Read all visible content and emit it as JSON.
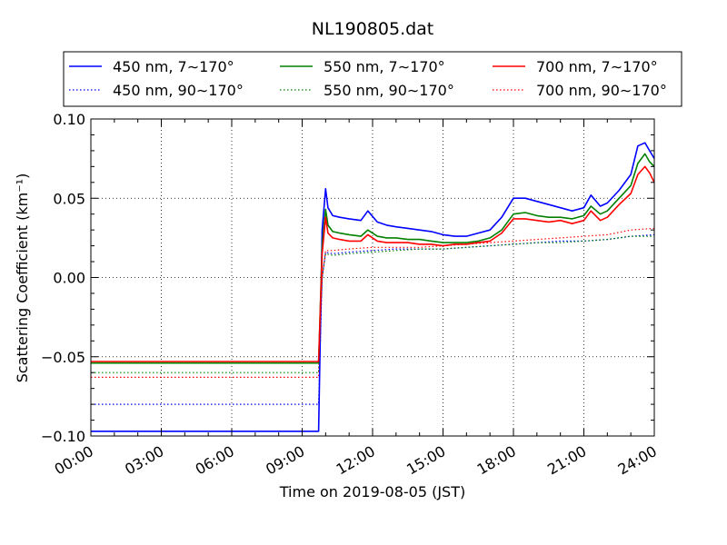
{
  "chart_data": {
    "type": "line",
    "title": "NL190805.dat",
    "xlabel": "Time on 2019-08-05 (JST)",
    "ylabel": "Scattering Coefficient (km⁻¹)",
    "x_unit": "hours",
    "xlim": [
      0,
      24
    ],
    "ylim": [
      -0.1,
      0.1
    ],
    "xticks": [
      0,
      3,
      6,
      9,
      12,
      15,
      18,
      21,
      24
    ],
    "xtick_labels": [
      "00:00",
      "03:00",
      "06:00",
      "09:00",
      "12:00",
      "15:00",
      "18:00",
      "21:00",
      "24:00"
    ],
    "yticks": [
      -0.1,
      -0.05,
      0.0,
      0.05,
      0.1
    ],
    "ytick_labels": [
      "−0.10",
      "−0.05",
      "0.00",
      "0.05",
      "0.10"
    ],
    "grid": true,
    "legend_position": "top, above plot, 3 columns",
    "series": [
      {
        "name": "450 nm, 7∼170°",
        "color": "#0000ff",
        "style": "solid",
        "x": [
          0,
          9.5,
          9.7,
          9.85,
          10.0,
          10.1,
          10.3,
          10.6,
          11.0,
          11.5,
          11.8,
          12.2,
          12.6,
          13.0,
          13.5,
          14.0,
          14.5,
          15.0,
          15.5,
          16.0,
          16.5,
          17.0,
          17.5,
          18.0,
          18.5,
          19.0,
          19.5,
          20.0,
          20.5,
          21.0,
          21.3,
          21.7,
          22.0,
          22.5,
          23.0,
          23.3,
          23.6,
          23.8,
          24.0
        ],
        "y": [
          -0.097,
          -0.097,
          -0.097,
          0.03,
          0.056,
          0.044,
          0.039,
          0.038,
          0.037,
          0.036,
          0.042,
          0.035,
          0.033,
          0.032,
          0.031,
          0.03,
          0.029,
          0.027,
          0.026,
          0.026,
          0.028,
          0.03,
          0.038,
          0.05,
          0.05,
          0.048,
          0.046,
          0.044,
          0.042,
          0.044,
          0.052,
          0.045,
          0.047,
          0.055,
          0.065,
          0.083,
          0.085,
          0.08,
          0.075
        ]
      },
      {
        "name": "450 nm, 90∼170°",
        "color": "#0000ff",
        "style": "dotted",
        "x": [
          0,
          9.5,
          9.7,
          9.85,
          10.0,
          10.3,
          11.0,
          12.0,
          13.0,
          14.0,
          15.0,
          16.0,
          17.0,
          18.0,
          19.0,
          20.0,
          21.0,
          22.0,
          23.0,
          24.0
        ],
        "y": [
          -0.08,
          -0.08,
          -0.08,
          0.0,
          0.016,
          0.015,
          0.016,
          0.017,
          0.018,
          0.018,
          0.018,
          0.019,
          0.02,
          0.021,
          0.022,
          0.023,
          0.023,
          0.024,
          0.026,
          0.027
        ]
      },
      {
        "name": "550 nm, 7∼170°",
        "color": "#008000",
        "style": "solid",
        "x": [
          0,
          9.5,
          9.7,
          9.85,
          10.0,
          10.1,
          10.3,
          10.6,
          11.0,
          11.5,
          11.8,
          12.2,
          12.6,
          13.0,
          13.5,
          14.0,
          14.5,
          15.0,
          15.5,
          16.0,
          16.5,
          17.0,
          17.5,
          18.0,
          18.5,
          19.0,
          19.5,
          20.0,
          20.5,
          21.0,
          21.3,
          21.7,
          22.0,
          22.5,
          23.0,
          23.3,
          23.6,
          23.8,
          24.0
        ],
        "y": [
          -0.054,
          -0.054,
          -0.054,
          0.02,
          0.043,
          0.033,
          0.029,
          0.028,
          0.027,
          0.026,
          0.03,
          0.026,
          0.025,
          0.025,
          0.024,
          0.024,
          0.023,
          0.022,
          0.022,
          0.022,
          0.023,
          0.025,
          0.03,
          0.04,
          0.041,
          0.039,
          0.038,
          0.038,
          0.037,
          0.039,
          0.045,
          0.04,
          0.042,
          0.05,
          0.058,
          0.072,
          0.078,
          0.073,
          0.07
        ]
      },
      {
        "name": "550 nm, 90∼170°",
        "color": "#008000",
        "style": "dotted",
        "x": [
          0,
          9.5,
          9.7,
          9.85,
          10.0,
          10.3,
          11.0,
          12.0,
          13.0,
          14.0,
          15.0,
          16.0,
          17.0,
          18.0,
          19.0,
          20.0,
          21.0,
          22.0,
          23.0,
          24.0
        ],
        "y": [
          -0.06,
          -0.06,
          -0.06,
          0.0,
          0.015,
          0.014,
          0.015,
          0.016,
          0.017,
          0.018,
          0.018,
          0.019,
          0.02,
          0.021,
          0.022,
          0.022,
          0.023,
          0.024,
          0.026,
          0.026
        ]
      },
      {
        "name": "700 nm, 7∼170°",
        "color": "#ff0000",
        "style": "solid",
        "x": [
          0,
          9.5,
          9.7,
          9.85,
          10.0,
          10.1,
          10.3,
          10.6,
          11.0,
          11.5,
          11.8,
          12.2,
          12.6,
          13.0,
          13.5,
          14.0,
          14.5,
          15.0,
          15.5,
          16.0,
          16.5,
          17.0,
          17.5,
          18.0,
          18.5,
          19.0,
          19.5,
          20.0,
          20.5,
          21.0,
          21.3,
          21.7,
          22.0,
          22.5,
          23.0,
          23.3,
          23.6,
          23.8,
          24.0
        ],
        "y": [
          -0.053,
          -0.053,
          -0.053,
          0.015,
          0.038,
          0.028,
          0.025,
          0.024,
          0.023,
          0.023,
          0.027,
          0.023,
          0.022,
          0.022,
          0.022,
          0.021,
          0.021,
          0.02,
          0.021,
          0.021,
          0.022,
          0.023,
          0.028,
          0.037,
          0.037,
          0.036,
          0.035,
          0.036,
          0.034,
          0.036,
          0.042,
          0.036,
          0.038,
          0.046,
          0.053,
          0.065,
          0.07,
          0.066,
          0.06
        ]
      },
      {
        "name": "700 nm, 90∼170°",
        "color": "#ff0000",
        "style": "dotted",
        "x": [
          0,
          9.5,
          9.7,
          9.85,
          10.0,
          10.3,
          11.0,
          12.0,
          13.0,
          14.0,
          15.0,
          16.0,
          17.0,
          18.0,
          19.0,
          20.0,
          21.0,
          22.0,
          23.0,
          24.0
        ],
        "y": [
          -0.063,
          -0.063,
          -0.063,
          0.0,
          0.017,
          0.017,
          0.018,
          0.019,
          0.019,
          0.019,
          0.02,
          0.021,
          0.022,
          0.023,
          0.024,
          0.025,
          0.026,
          0.027,
          0.03,
          0.031
        ]
      }
    ]
  }
}
